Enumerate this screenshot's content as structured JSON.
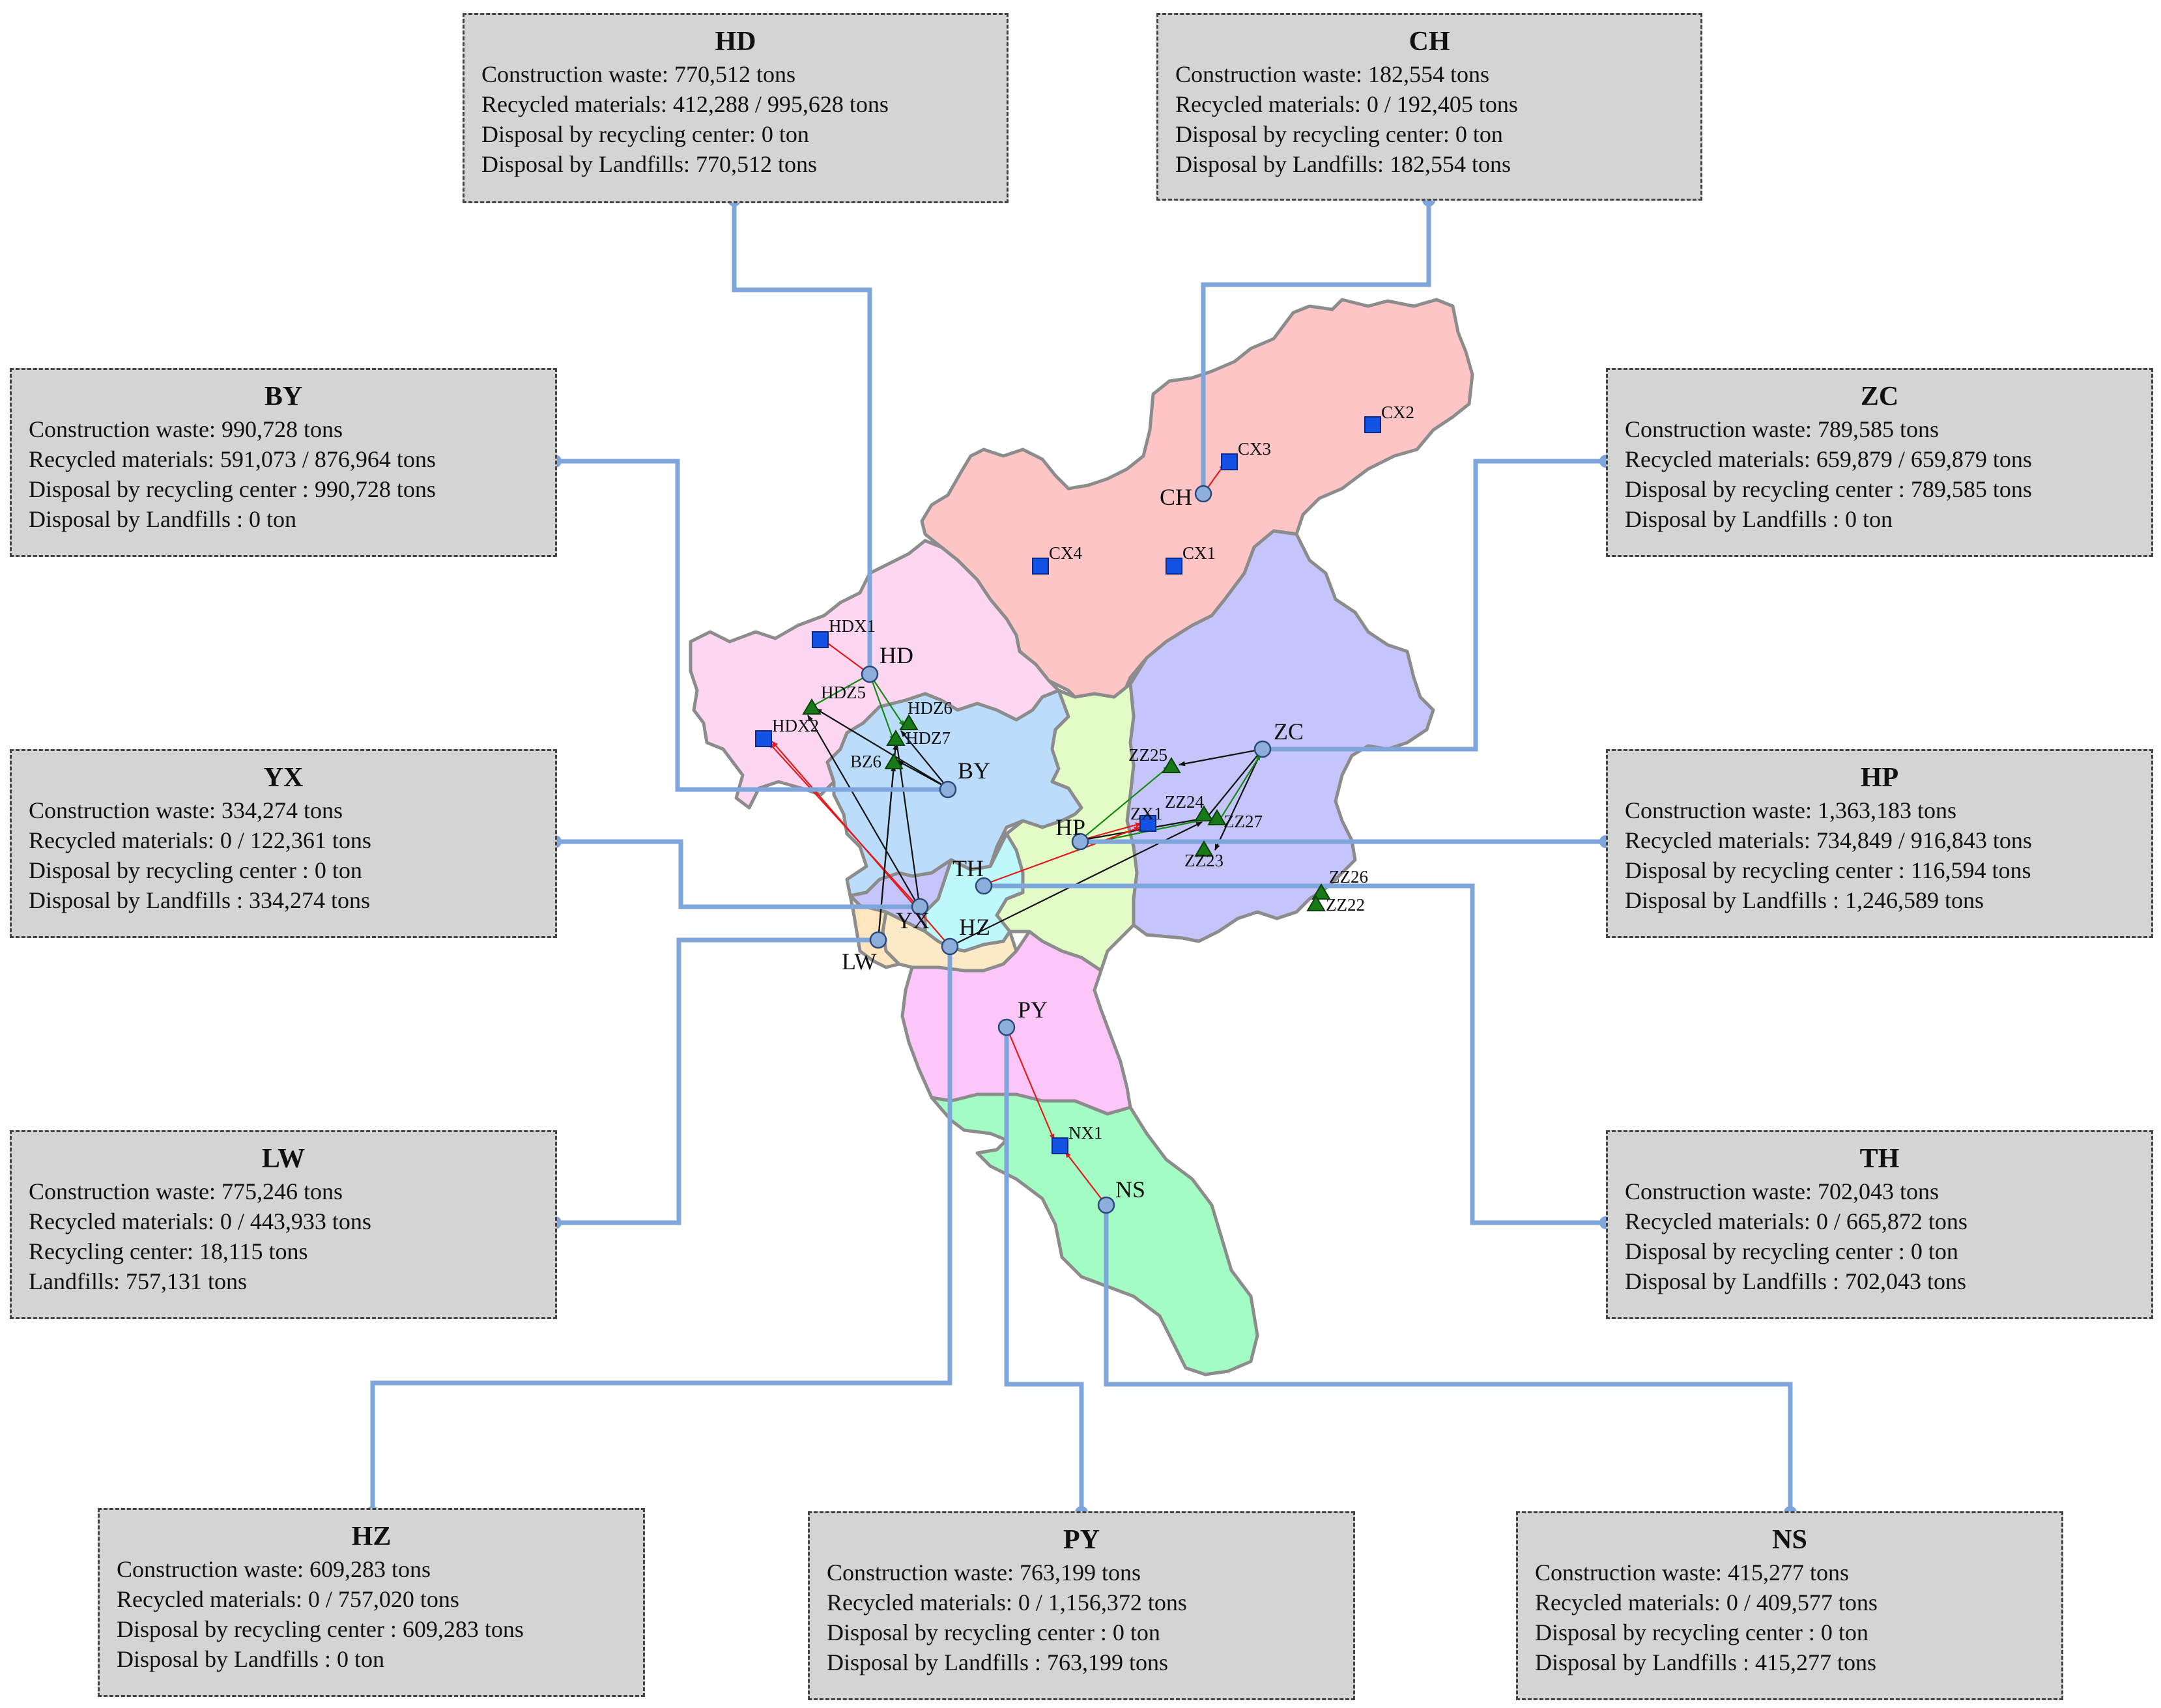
{
  "colors": {
    "connector": "#7ea6dc",
    "box_fill": "#d4d4d4",
    "region_border": "#8c8c8c",
    "district_fill": {
      "CH": "#fdc5c5",
      "ZC": "#c5c5fb",
      "HD": "#fdd7f2",
      "BY": "#bcdcfb",
      "HP": "#e3fcc7",
      "TH": "#bff8fa",
      "HZ": "#fce9c5",
      "LW": "#fde6bf",
      "PY": "#fcc6f9",
      "NS": "#a4fcc5"
    },
    "recycling_center": "#1452e6",
    "landfill": "#177a17",
    "flow_to_center": "#e31a1c",
    "flow_to_landfill": "#111111",
    "flow_green": "#138a13"
  },
  "legend_symbols": {
    "district_centroid": "circle-icon",
    "recycling_center": "square-icon",
    "landfill": "triangle-icon"
  },
  "info_boxes": [
    {
      "id": "HD",
      "title": "HD",
      "lines": [
        "Construction waste: 770,512 tons",
        "Recycled materials: 412,288 / 995,628 tons",
        "Disposal by recycling center: 0 ton",
        "Disposal by Landfills: 770,512 tons"
      ]
    },
    {
      "id": "CH",
      "title": "CH",
      "lines": [
        "Construction waste: 182,554 tons",
        "Recycled materials: 0 / 192,405 tons",
        "Disposal by recycling center: 0 ton",
        "Disposal by Landfills: 182,554 tons"
      ]
    },
    {
      "id": "BY",
      "title": "BY",
      "lines": [
        "Construction waste: 990,728 tons",
        "Recycled materials: 591,073 / 876,964 tons",
        "Disposal by recycling center : 990,728 tons",
        "Disposal by Landfills : 0 ton"
      ]
    },
    {
      "id": "ZC",
      "title": "ZC",
      "lines": [
        "Construction waste: 789,585 tons",
        "Recycled materials: 659,879 / 659,879 tons",
        "Disposal by recycling center : 789,585 tons",
        "Disposal by Landfills : 0 ton"
      ]
    },
    {
      "id": "YX",
      "title": "YX",
      "lines": [
        "Construction waste: 334,274 tons",
        "Recycled materials: 0 / 122,361 tons",
        "Disposal by recycling center : 0 ton",
        "Disposal by Landfills : 334,274 tons"
      ]
    },
    {
      "id": "HP",
      "title": "HP",
      "lines": [
        "Construction waste: 1,363,183 tons",
        "Recycled materials: 734,849 / 916,843 tons",
        "Disposal by recycling center : 116,594 tons",
        "Disposal by Landfills : 1,246,589 tons"
      ]
    },
    {
      "id": "LW",
      "title": "LW",
      "lines": [
        "Construction waste: 775,246 tons",
        "Recycled materials: 0 / 443,933 tons",
        "Recycling center: 18,115 tons",
        "Landfills: 757,131 tons"
      ]
    },
    {
      "id": "TH",
      "title": "TH",
      "lines": [
        "Construction waste: 702,043 tons",
        "Recycled materials: 0 / 665,872 tons",
        "Disposal by recycling center : 0 ton",
        "Disposal by Landfills : 702,043 tons"
      ]
    },
    {
      "id": "HZ",
      "title": "HZ",
      "lines": [
        "Construction waste: 609,283 tons",
        "Recycled materials: 0 / 757,020 tons",
        "Disposal by recycling center : 609,283 tons",
        "Disposal by Landfills : 0 ton"
      ]
    },
    {
      "id": "PY",
      "title": "PY",
      "lines": [
        "Construction waste: 763,199 tons",
        "Recycled materials: 0 / 1,156,372 tons",
        "Disposal by recycling center : 0 ton",
        "Disposal by Landfills : 763,199 tons"
      ]
    },
    {
      "id": "NS",
      "title": "NS",
      "lines": [
        "Construction waste: 415,277 tons",
        "Recycled materials: 0 / 409,577 tons",
        "Disposal by recycling center : 0 ton",
        "Disposal by Landfills : 415,277 tons"
      ]
    }
  ],
  "district_labels": [
    "HD",
    "CH",
    "BY",
    "ZC",
    "HP",
    "TH",
    "YX",
    "HZ",
    "LW",
    "PY",
    "NS"
  ],
  "recycling_centers": [
    "CX1",
    "CX2",
    "CX3",
    "CX4",
    "HDX1",
    "HDX2",
    "ZX1",
    "NX1"
  ],
  "landfills": [
    "HDZ5",
    "HDZ6",
    "HDZ7",
    "BZ6",
    "ZZ22",
    "ZZ23",
    "ZZ24",
    "ZZ25",
    "ZZ26",
    "ZZ27"
  ]
}
